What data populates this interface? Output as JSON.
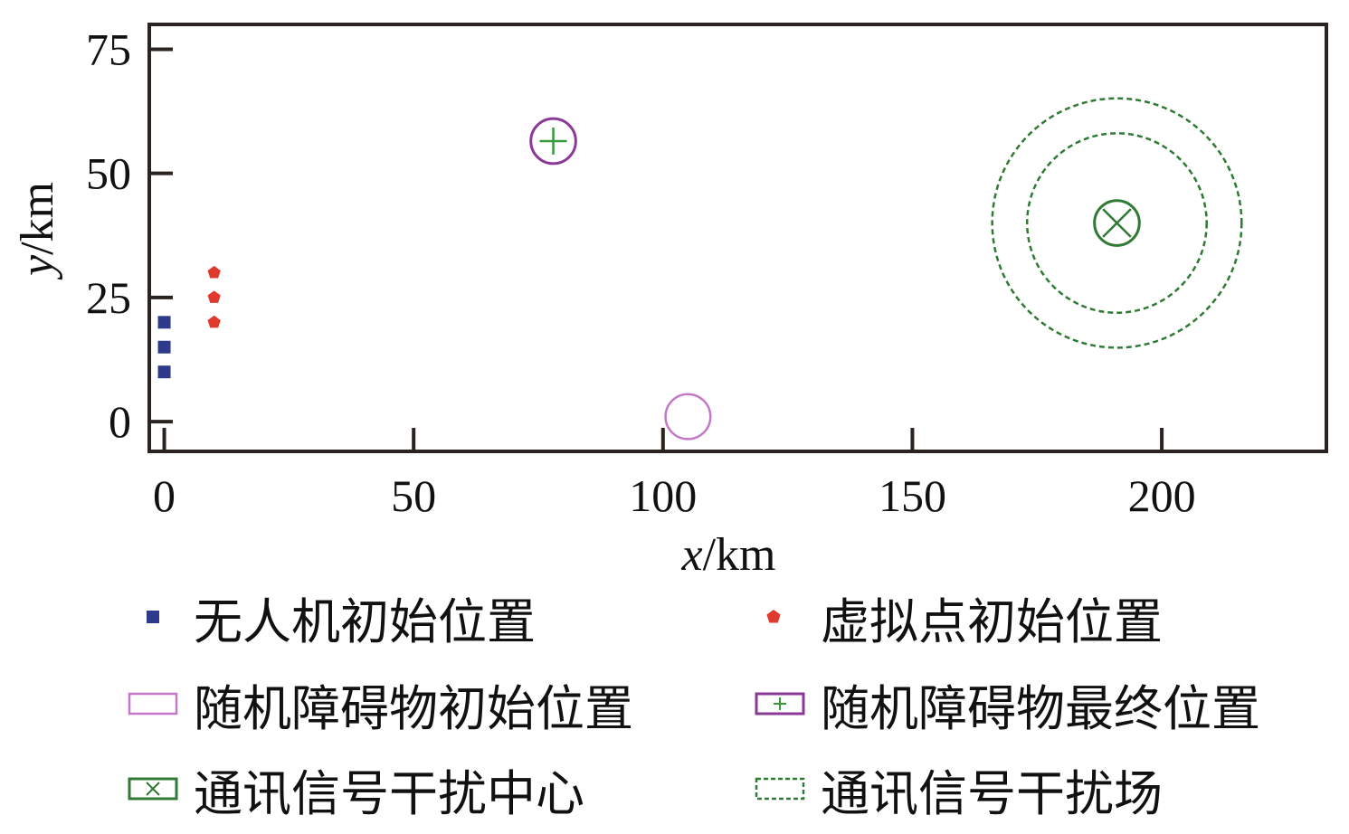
{
  "chart_data": {
    "type": "scatter",
    "xlabel": "x/km",
    "ylabel": "y/km",
    "xlim": [
      -3,
      233
    ],
    "ylim": [
      -6,
      80
    ],
    "xticks": [
      0,
      50,
      100,
      150,
      200
    ],
    "yticks": [
      0,
      25,
      50,
      75
    ],
    "grid": false,
    "legend_position": "bottom",
    "series": [
      {
        "name": "无人机初始位置",
        "marker": "square",
        "color": "#2e3a8c",
        "points": [
          [
            0,
            10
          ],
          [
            0,
            15
          ],
          [
            0,
            20
          ]
        ]
      },
      {
        "name": "虚拟点初始位置",
        "marker": "pentagon",
        "color": "#e03a2e",
        "points": [
          [
            10,
            20
          ],
          [
            10,
            25
          ],
          [
            10,
            30
          ]
        ]
      },
      {
        "name": "随机障碍物初始位置",
        "marker": "circle",
        "color": "#c678c8",
        "points": [
          [
            105,
            1
          ]
        ],
        "radius_km": 4.5
      },
      {
        "name": "随机障碍物最终位置",
        "marker": "circle-plus",
        "color": "#8a3a96",
        "points": [
          [
            78,
            56.5
          ]
        ],
        "radius_km": 4.5
      },
      {
        "name": "通讯信号干扰中心",
        "marker": "circle-x",
        "color": "#2f7a35",
        "points": [
          [
            191,
            40
          ]
        ],
        "radius_km": 4.5
      },
      {
        "name": "通讯信号干扰场",
        "marker": "dashed-circle",
        "color": "#2f7a35",
        "points": [
          [
            191,
            40
          ]
        ],
        "radii_km": [
          18,
          25
        ]
      }
    ]
  }
}
